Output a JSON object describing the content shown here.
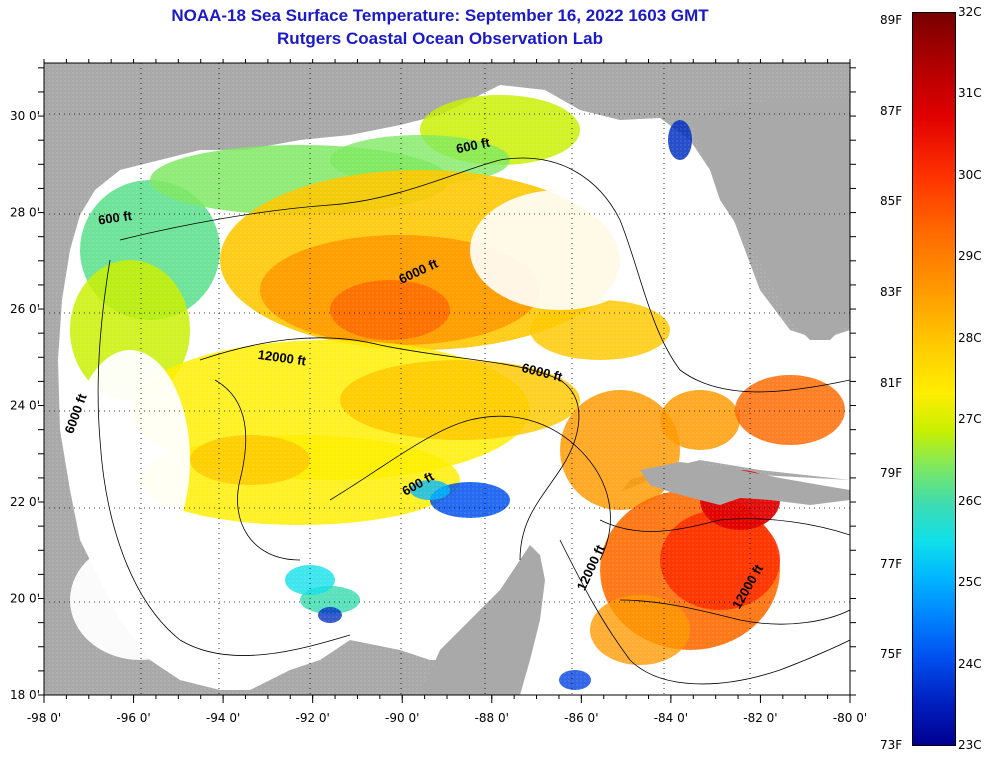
{
  "title": {
    "line1": "NOAA-18 Sea Surface Temperature:  September 16, 2022 1603 GMT",
    "line2": "Rutgers Coastal Ocean Observation Lab"
  },
  "axes": {
    "x_ticks": [
      "-98 0'",
      "-96 0'",
      "-94 0'",
      "-92 0'",
      "-90 0'",
      "-88 0'",
      "-86 0'",
      "-84 0'",
      "-82 0'",
      "-80 0'"
    ],
    "y_ticks": [
      "30 0'",
      "28 0'",
      "26 0'",
      "24 0'",
      "22 0'",
      "20 0'",
      "18 0'"
    ]
  },
  "contour_labels": [
    {
      "text": "600 ft",
      "lon": -88.4,
      "lat": 29.3
    },
    {
      "text": "600 ft",
      "lon": -96.4,
      "lat": 27.8
    },
    {
      "text": "6000 ft",
      "lon": -89.6,
      "lat": 26.7
    },
    {
      "text": "12000 ft",
      "lon": -92.7,
      "lat": 24.9
    },
    {
      "text": "6000 ft",
      "lon": -86.9,
      "lat": 24.6
    },
    {
      "text": "6000 ft",
      "lon": -97.2,
      "lat": 23.8
    },
    {
      "text": "600 ft",
      "lon": -89.6,
      "lat": 22.3
    },
    {
      "text": "12000 ft",
      "lon": -85.7,
      "lat": 20.6
    },
    {
      "text": "12000 ft",
      "lon": -82.2,
      "lat": 20.2
    }
  ],
  "colorbar": {
    "fahrenheit": [
      "89F",
      "87F",
      "85F",
      "83F",
      "81F",
      "79F",
      "77F",
      "75F",
      "73F"
    ],
    "celsius": [
      "32C",
      "31C",
      "30C",
      "29C",
      "28C",
      "27C",
      "26C",
      "25C",
      "24C",
      "23C"
    ]
  },
  "colors": {
    "title": "#1a1ac8",
    "land": "#a9a9a9",
    "nodata": "#ffffff",
    "warm": "#ff8a00",
    "hot": "#e01000",
    "moderate": "#ffd800",
    "cool": "#60e090",
    "cold": "#1030d0"
  }
}
